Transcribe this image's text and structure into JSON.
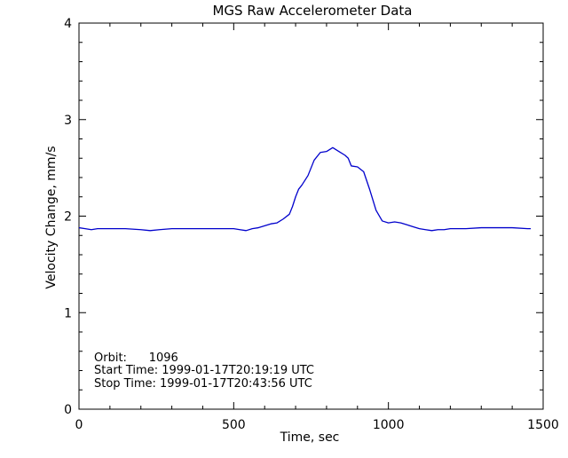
{
  "chart_data": {
    "type": "line",
    "title": "MGS Raw Accelerometer Data",
    "xlabel": "Time, sec",
    "ylabel": "Velocity Change, mm/s",
    "xlim": [
      0,
      1500
    ],
    "ylim": [
      0,
      4
    ],
    "xticks": [
      0,
      500,
      1000,
      1500
    ],
    "yticks": [
      0,
      1,
      2,
      3,
      4
    ],
    "grid": false,
    "series": [
      {
        "color": "#0000cc",
        "x": [
          0,
          20,
          40,
          60,
          80,
          100,
          150,
          200,
          230,
          260,
          300,
          350,
          400,
          450,
          500,
          520,
          540,
          560,
          580,
          600,
          620,
          640,
          660,
          680,
          690,
          700,
          710,
          720,
          740,
          760,
          780,
          800,
          820,
          840,
          860,
          870,
          880,
          900,
          920,
          940,
          960,
          980,
          1000,
          1020,
          1040,
          1060,
          1080,
          1100,
          1120,
          1140,
          1160,
          1180,
          1200,
          1250,
          1300,
          1350,
          1400,
          1450,
          1460
        ],
        "y": [
          1.88,
          1.87,
          1.86,
          1.87,
          1.87,
          1.87,
          1.87,
          1.86,
          1.85,
          1.86,
          1.87,
          1.87,
          1.87,
          1.87,
          1.87,
          1.86,
          1.85,
          1.87,
          1.88,
          1.9,
          1.92,
          1.93,
          1.97,
          2.02,
          2.1,
          2.2,
          2.28,
          2.32,
          2.42,
          2.58,
          2.66,
          2.67,
          2.71,
          2.67,
          2.63,
          2.6,
          2.52,
          2.51,
          2.46,
          2.27,
          2.06,
          1.95,
          1.93,
          1.94,
          1.93,
          1.91,
          1.89,
          1.87,
          1.86,
          1.85,
          1.86,
          1.86,
          1.87,
          1.87,
          1.88,
          1.88,
          1.88,
          1.87,
          1.87
        ]
      }
    ],
    "annotations": [
      "Orbit:      1096",
      "Start Time: 1999-01-17T20:19:19 UTC",
      "Stop Time: 1999-01-17T20:43:56 UTC"
    ]
  }
}
